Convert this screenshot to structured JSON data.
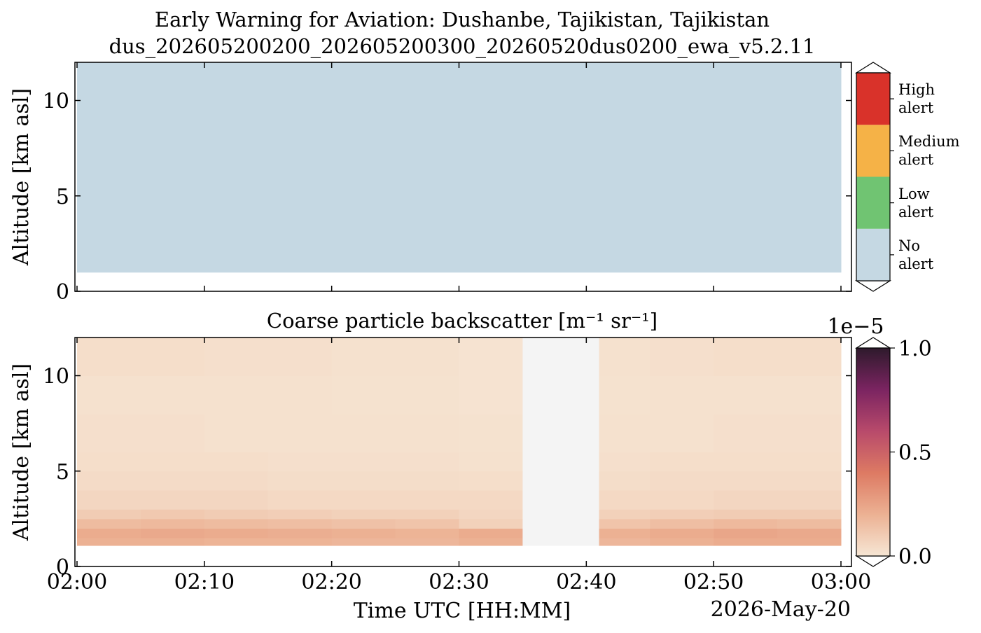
{
  "chart_data": [
    {
      "type": "categorical_heatmap",
      "title": "Early Warning for Aviation: Dushanbe, Tajikistan, Tajikistan",
      "subtitle": "dus_202605200200_202605200300_20260520dus0200_ewa_v5.2.11",
      "ylabel": "Altitude [km asl]",
      "xlim": [
        "02:00",
        "03:00"
      ],
      "xticks": [
        "02:00",
        "02:10",
        "02:20",
        "02:30",
        "02:40",
        "02:50",
        "03:00"
      ],
      "ylim": [
        0,
        12
      ],
      "yticks": [
        0,
        5,
        10
      ],
      "x_edges": [
        "02:00",
        "03:00"
      ],
      "y_edges": [
        1,
        12
      ],
      "values": [
        [
          0
        ]
      ],
      "colorbar": {
        "ticks": [
          {
            "value": 0,
            "label": "No alert"
          },
          {
            "value": 1,
            "label": "Low alert"
          },
          {
            "value": 2,
            "label": "Medium alert"
          },
          {
            "value": 3,
            "label": "High alert"
          }
        ],
        "colors": [
          "#c5d8e3",
          "#70c472",
          "#f5b247",
          "#d9322a"
        ]
      }
    },
    {
      "type": "heatmap",
      "title": "Coarse particle backscatter [m⁻¹ sr⁻¹]",
      "ylabel": "Altitude [km asl]",
      "xlabel": "Time UTC [HH:MM]",
      "date": "2026-May-20",
      "xlim": [
        "02:00",
        "03:00"
      ],
      "xticks": [
        "02:00",
        "02:10",
        "02:20",
        "02:30",
        "02:40",
        "02:50",
        "03:00"
      ],
      "ylim": [
        0,
        12
      ],
      "yticks": [
        0,
        5,
        10
      ],
      "x_edges": [
        "02:00",
        "02:05",
        "02:10",
        "02:15",
        "02:20",
        "02:25",
        "02:30",
        "02:35",
        "02:41",
        "02:45",
        "02:50",
        "02:55",
        "03:00"
      ],
      "y_edges": [
        1.1,
        1.5,
        2,
        2.5,
        3,
        4,
        5,
        6,
        8,
        10,
        12
      ],
      "values": [
        [
          0.2,
          0.2,
          0.19,
          0.19,
          0.18,
          0.18,
          0.2,
          0,
          0.18,
          0.2,
          0.22,
          0.22
        ],
        [
          0.22,
          0.23,
          0.22,
          0.21,
          0.2,
          0.19,
          0.22,
          0,
          0.2,
          0.22,
          0.24,
          0.23
        ],
        [
          0.16,
          0.17,
          0.16,
          0.15,
          0.14,
          0.13,
          0.08,
          0,
          0.13,
          0.15,
          0.17,
          0.16
        ],
        [
          0.1,
          0.11,
          0.1,
          0.09,
          0.08,
          0.08,
          0.06,
          0,
          0.08,
          0.09,
          0.1,
          0.1
        ],
        [
          0.06,
          0.06,
          0.06,
          0.05,
          0.05,
          0.05,
          0.05,
          0,
          0.05,
          0.05,
          0.06,
          0.06
        ],
        [
          0.04,
          0.04,
          0.04,
          0.035,
          0.035,
          0.035,
          0.03,
          0,
          0.035,
          0.04,
          0.04,
          0.04
        ],
        [
          0.03,
          0.03,
          0.03,
          0.025,
          0.025,
          0.025,
          0.02,
          0,
          0.025,
          0.03,
          0.03,
          0.03
        ],
        [
          0.025,
          0.025,
          0.02,
          0.02,
          0.02,
          0.02,
          0.015,
          0,
          0.02,
          0.02,
          0.025,
          0.025
        ],
        [
          0.02,
          0.02,
          0.02,
          0.02,
          0.015,
          0.015,
          0.01,
          0,
          0.015,
          0.02,
          0.02,
          0.02
        ],
        [
          0.03,
          0.03,
          0.025,
          0.025,
          0.02,
          0.02,
          0.01,
          0,
          0.02,
          0.025,
          0.03,
          0.03
        ]
      ],
      "under_color": "#f4f4f4",
      "colorbar": {
        "clim": [
          0,
          1
        ],
        "ticks": [
          {
            "value": 0,
            "label": "0.0"
          },
          0.5,
          {
            "value": 1,
            "label": "1.0"
          }
        ],
        "offset_label": "1e−5",
        "cmap": [
          "#f6e6d4",
          "#ecb193",
          "#dd7a63",
          "#b84a6b",
          "#7b2461",
          "#2e1a2c"
        ]
      }
    }
  ]
}
